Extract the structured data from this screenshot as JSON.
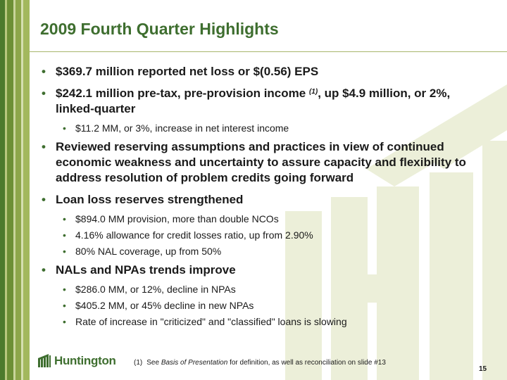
{
  "slide": {
    "title": "2009 Fourth Quarter Highlights",
    "page_number": "15"
  },
  "bullets": [
    {
      "level": 1,
      "text": "$369.7 million reported net loss or $(0.56) EPS"
    },
    {
      "level": 1,
      "text_before": "$242.1 million pre-tax, pre-provision income ",
      "footnote_ref": "(1)",
      "text_after": ", up $4.9 million, or 2%, linked-quarter"
    },
    {
      "level": 2,
      "text": "$11.2 MM, or 3%, increase in net interest income"
    },
    {
      "level": 1,
      "text": "Reviewed reserving assumptions and practices in view of continued economic weakness and uncertainty to assure capacity and flexibility to address resolution of problem credits going forward"
    },
    {
      "level": 1,
      "text": "Loan loss reserves strengthened"
    },
    {
      "level": 2,
      "text": "$894.0 MM provision, more than double NCOs"
    },
    {
      "level": 2,
      "text": "4.16% allowance for credit losses ratio, up from 2.90%"
    },
    {
      "level": 2,
      "text": "80% NAL coverage, up from 50%"
    },
    {
      "level": 1,
      "text": "NALs and NPAs trends improve"
    },
    {
      "level": 2,
      "text": "$286.0 MM, or 12%, decline in NPAs"
    },
    {
      "level": 2,
      "text": "$405.2 MM, or 45% decline in new NPAs"
    },
    {
      "level": 2,
      "text": "Rate of increase in \"criticized\" and \"classified\" loans is slowing"
    }
  ],
  "bullet_glyph": "•",
  "footnote": {
    "ref": "(1)",
    "text_before": "See ",
    "text_italic": "Basis of Presentation",
    "text_after": " for definition, as well as reconciliation on slide #13"
  },
  "logo": {
    "text": "Huntington",
    "icon": "huntington-logo-icon"
  },
  "colors": {
    "title_green": "#3e6e2f",
    "stripe_dark": "#4d7a2c",
    "stripe_light": "#8da64a",
    "watermark": "#ecefd9"
  }
}
